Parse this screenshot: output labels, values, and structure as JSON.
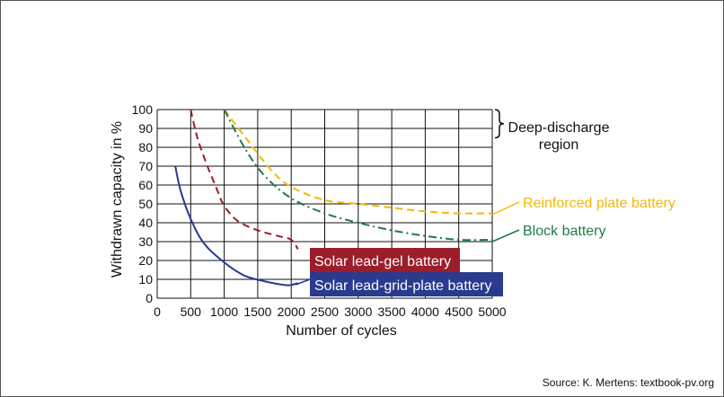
{
  "chart_data": {
    "type": "line",
    "xlabel": "Number of cycles",
    "ylabel": "Withdrawn capacity in %",
    "xlim": [
      0,
      5000
    ],
    "ylim": [
      0,
      100
    ],
    "x_ticks": [
      0,
      500,
      1000,
      1500,
      2000,
      2500,
      3000,
      3500,
      4000,
      4500,
      5000
    ],
    "y_ticks": [
      0,
      10,
      20,
      30,
      40,
      50,
      60,
      70,
      80,
      90,
      100
    ],
    "grid": true,
    "series": [
      {
        "name": "Reinforced plate battery",
        "color": "#f5b800",
        "style": "dashed",
        "label_box": false,
        "x": [
          1000,
          1300,
          1700,
          2000,
          2500,
          3000,
          3500,
          4000,
          4500,
          5000
        ],
        "y": [
          100,
          86,
          68,
          59,
          52,
          50,
          48,
          46,
          45,
          45
        ]
      },
      {
        "name": "Block battery",
        "color": "#1e7b4a",
        "style": "dashdot",
        "label_box": false,
        "x": [
          1000,
          1300,
          1600,
          2000,
          2500,
          3000,
          3500,
          4000,
          4500,
          5000
        ],
        "y": [
          100,
          80,
          65,
          53,
          45,
          40,
          36,
          33,
          31,
          31
        ]
      },
      {
        "name": "Solar lead-gel battery",
        "color": "#9b1d2a",
        "style": "dashed",
        "label_box": true,
        "x": [
          500,
          600,
          750,
          900,
          1000,
          1200,
          1500,
          1800,
          2000,
          2100
        ],
        "y": [
          100,
          85,
          70,
          57,
          49,
          41,
          36,
          33,
          31,
          26
        ]
      },
      {
        "name": "Solar lead-grid-plate battery",
        "color": "#2a3a8f",
        "style": "solid",
        "label_box": true,
        "x": [
          270,
          350,
          500,
          700,
          1000,
          1300,
          1600,
          1900,
          2000,
          2100
        ],
        "y": [
          70,
          57,
          42,
          29,
          19,
          12,
          9,
          7,
          7,
          8
        ]
      }
    ],
    "annotations": [
      {
        "name": "deep-discharge",
        "lines": [
          "Deep-discharge",
          "region"
        ],
        "range": [
          85,
          100
        ]
      }
    ]
  },
  "source": "Source: K. Mertens: textbook-pv.org"
}
